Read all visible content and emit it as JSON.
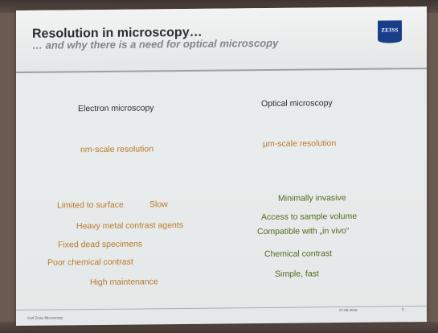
{
  "slide": {
    "title": "Resolution in microscopy…",
    "subtitle": "… and why there is a need for optical microscopy",
    "logo_text": "ZEISS",
    "electron": {
      "heading": "Electron microscopy",
      "resolution": "nm-scale resolution",
      "items": {
        "limited": "Limited to surface",
        "slow": "Slow",
        "heavy_metal": "Heavy metal contrast agents",
        "fixed": "Fixed dead specimens",
        "poor_contrast": "Poor chemical contrast",
        "maintenance": "High maintenance"
      }
    },
    "optical": {
      "heading": "Optical microscopy",
      "resolution": "µm-scale resolution",
      "items": {
        "invasive": "Minimally invasive",
        "access": "Access to sample volume",
        "in_vivo": "Compatible with „in vivo“",
        "chem_contrast": "Chemical contrast",
        "simple": "Simple, fast"
      }
    },
    "footer": {
      "left": "Carl Zeiss Microscopy",
      "date": "07.06.2016",
      "page": "5"
    }
  },
  "colors": {
    "disadvantage": "#b8792a",
    "advantage": "#4e6b22",
    "brand": "#1a3d8a"
  }
}
